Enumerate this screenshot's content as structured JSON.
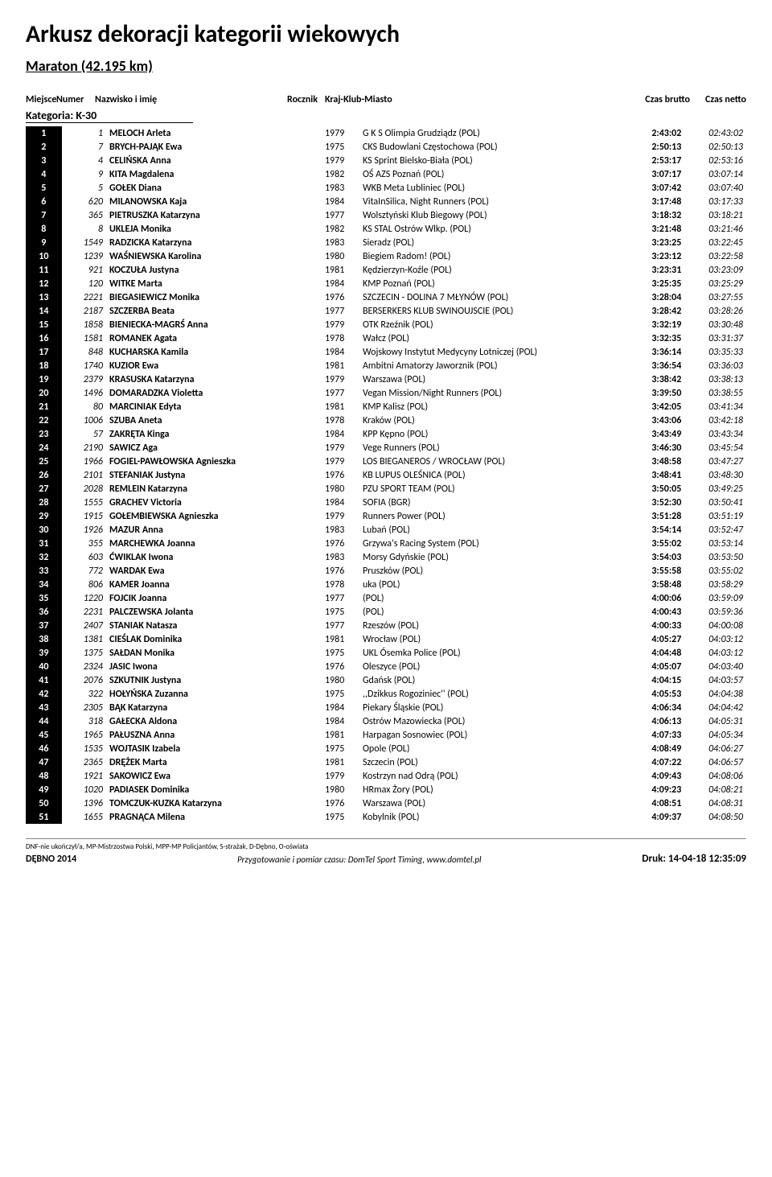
{
  "title": "Arkusz dekoracji kategorii wiekowych",
  "subtitle": "Maraton (42.195 km)",
  "headers": {
    "place": "Miejsce",
    "num": "Numer",
    "name": "Nazwisko i imię",
    "year": "Rocznik",
    "club": "Kraj-Klub-Miasto",
    "brutto": "Czas brutto",
    "netto": "Czas netto"
  },
  "category_label": "Kategoria: K-30",
  "rows": [
    {
      "p": "1",
      "n": "1",
      "name": "MELOCH Arleta",
      "y": "1979",
      "c": "G K S Olimpia  Grudziądz (POL)",
      "b": "2:43:02",
      "t": "02:43:02"
    },
    {
      "p": "2",
      "n": "7",
      "name": "BRYCH-PAJĄK Ewa",
      "y": "1975",
      "c": "CKS Budowlani Częstochowa (POL)",
      "b": "2:50:13",
      "t": "02:50:13"
    },
    {
      "p": "3",
      "n": "4",
      "name": "CELIŃSKA Anna",
      "y": "1979",
      "c": "KS Sprint Bielsko-Biała (POL)",
      "b": "2:53:17",
      "t": "02:53:16"
    },
    {
      "p": "4",
      "n": "9",
      "name": "KITA Magdalena",
      "y": "1982",
      "c": "OŚ AZS Poznań (POL)",
      "b": "3:07:17",
      "t": "03:07:14"
    },
    {
      "p": "5",
      "n": "5",
      "name": "GOŁEK Diana",
      "y": "1983",
      "c": "WKB Meta Lubliniec (POL)",
      "b": "3:07:42",
      "t": "03:07:40"
    },
    {
      "p": "6",
      "n": "620",
      "name": "MILANOWSKA Kaja",
      "y": "1984",
      "c": "VitaInSilica, Night Runners (POL)",
      "b": "3:17:48",
      "t": "03:17:33"
    },
    {
      "p": "7",
      "n": "365",
      "name": "PIETRUSZKA Katarzyna",
      "y": "1977",
      "c": "Wolsztyński Klub Biegowy (POL)",
      "b": "3:18:32",
      "t": "03:18:21"
    },
    {
      "p": "8",
      "n": "8",
      "name": "UKLEJA Monika",
      "y": "1982",
      "c": "KS STAL Ostrów Wlkp. (POL)",
      "b": "3:21:48",
      "t": "03:21:46"
    },
    {
      "p": "9",
      "n": "1549",
      "name": "RADZICKA Katarzyna",
      "y": "1983",
      "c": "Sieradz (POL)",
      "b": "3:23:25",
      "t": "03:22:45"
    },
    {
      "p": "10",
      "n": "1239",
      "name": "WAŚNIEWSKA Karolina",
      "y": "1980",
      "c": "Biegiem Radom! (POL)",
      "b": "3:23:12",
      "t": "03:22:58"
    },
    {
      "p": "11",
      "n": "921",
      "name": "KOCZUŁA Justyna",
      "y": "1981",
      "c": "Kędzierzyn-Koźle (POL)",
      "b": "3:23:31",
      "t": "03:23:09"
    },
    {
      "p": "12",
      "n": "120",
      "name": "WITKE Marta",
      "y": "1984",
      "c": "KMP Poznań (POL)",
      "b": "3:25:35",
      "t": "03:25:29"
    },
    {
      "p": "13",
      "n": "2221",
      "name": "BIEGASIEWICZ Monika",
      "y": "1976",
      "c": "SZCZECIN - DOLINA 7 MŁYNÓW (POL)",
      "b": "3:28:04",
      "t": "03:27:55"
    },
    {
      "p": "14",
      "n": "2187",
      "name": "SZCZERBA Beata",
      "y": "1977",
      "c": "BERSERKERS KLUB SWINOUJSCIE (POL)",
      "b": "3:28:42",
      "t": "03:28:26"
    },
    {
      "p": "15",
      "n": "1858",
      "name": "BIENIECKA-MAGRŚ Anna",
      "y": "1979",
      "c": "OTK Rzeźnik (POL)",
      "b": "3:32:19",
      "t": "03:30:48"
    },
    {
      "p": "16",
      "n": "1581",
      "name": "ROMANEK Agata",
      "y": "1978",
      "c": "Wałcz (POL)",
      "b": "3:32:35",
      "t": "03:31:37"
    },
    {
      "p": "17",
      "n": "848",
      "name": "KUCHARSKA Kamila",
      "y": "1984",
      "c": "Wojskowy Instytut Medycyny Lotniczej (POL)",
      "b": "3:36:14",
      "t": "03:35:33"
    },
    {
      "p": "18",
      "n": "1740",
      "name": "KUZIOR Ewa",
      "y": "1981",
      "c": "Ambitni Amatorzy Jaworznik (POL)",
      "b": "3:36:54",
      "t": "03:36:03"
    },
    {
      "p": "19",
      "n": "2379",
      "name": "KRASUSKA Katarzyna",
      "y": "1979",
      "c": "Warszawa (POL)",
      "b": "3:38:42",
      "t": "03:38:13"
    },
    {
      "p": "20",
      "n": "1496",
      "name": "DOMARADZKA Violetta",
      "y": "1977",
      "c": "Vegan Mission/Night Runners (POL)",
      "b": "3:39:50",
      "t": "03:38:55"
    },
    {
      "p": "21",
      "n": "80",
      "name": "MARCINIAK Edyta",
      "y": "1981",
      "c": "KMP Kalisz (POL)",
      "b": "3:42:05",
      "t": "03:41:34"
    },
    {
      "p": "22",
      "n": "1006",
      "name": "SZUBA Aneta",
      "y": "1978",
      "c": "Kraków (POL)",
      "b": "3:43:06",
      "t": "03:42:18"
    },
    {
      "p": "23",
      "n": "57",
      "name": "ZAKRĘTA Kinga",
      "y": "1984",
      "c": "KPP Kępno (POL)",
      "b": "3:43:49",
      "t": "03:43:34"
    },
    {
      "p": "24",
      "n": "2190",
      "name": "SAWICZ Aga",
      "y": "1979",
      "c": "Vege Runners (POL)",
      "b": "3:46:30",
      "t": "03:45:54"
    },
    {
      "p": "25",
      "n": "1966",
      "name": "FOGIEL-PAWŁOWSKA Agnieszka",
      "y": "1979",
      "c": "LOS BIEGANEROS / WROCŁAW (POL)",
      "b": "3:48:58",
      "t": "03:47:27"
    },
    {
      "p": "26",
      "n": "2101",
      "name": "STEFANIAK Justyna",
      "y": "1976",
      "c": "KB LUPUS OLEŚNICA (POL)",
      "b": "3:48:41",
      "t": "03:48:30"
    },
    {
      "p": "27",
      "n": "2028",
      "name": "REMLEIN Katarzyna",
      "y": "1980",
      "c": "PZU SPORT TEAM (POL)",
      "b": "3:50:05",
      "t": "03:49:25"
    },
    {
      "p": "28",
      "n": "1555",
      "name": "GRACHEV Victoria",
      "y": "1984",
      "c": "SOFIA (BGR)",
      "b": "3:52:30",
      "t": "03:50:41"
    },
    {
      "p": "29",
      "n": "1915",
      "name": "GOŁEMBIEWSKA Agnieszka",
      "y": "1979",
      "c": "Runners Power  (POL)",
      "b": "3:51:28",
      "t": "03:51:19"
    },
    {
      "p": "30",
      "n": "1926",
      "name": "MAZUR Anna",
      "y": "1983",
      "c": "Lubań (POL)",
      "b": "3:54:14",
      "t": "03:52:47"
    },
    {
      "p": "31",
      "n": "355",
      "name": "MARCHEWKA Joanna",
      "y": "1976",
      "c": "Grzywa's Racing System (POL)",
      "b": "3:55:02",
      "t": "03:53:14"
    },
    {
      "p": "32",
      "n": "603",
      "name": "ĆWIKLAK Iwona",
      "y": "1983",
      "c": "Morsy Gdyńskie (POL)",
      "b": "3:54:03",
      "t": "03:53:50"
    },
    {
      "p": "33",
      "n": "772",
      "name": "WARDAK Ewa",
      "y": "1976",
      "c": "Pruszków (POL)",
      "b": "3:55:58",
      "t": "03:55:02"
    },
    {
      "p": "34",
      "n": "806",
      "name": "KAMER Joanna",
      "y": "1978",
      "c": "uka (POL)",
      "b": "3:58:48",
      "t": "03:58:29"
    },
    {
      "p": "35",
      "n": "1220",
      "name": "FOJCIK Joanna",
      "y": "1977",
      "c": " (POL)",
      "b": "4:00:06",
      "t": "03:59:09"
    },
    {
      "p": "36",
      "n": "2231",
      "name": "PALCZEWSKA Jolanta",
      "y": "1975",
      "c": " (POL)",
      "b": "4:00:43",
      "t": "03:59:36"
    },
    {
      "p": "37",
      "n": "2407",
      "name": "STANIAK Natasza",
      "y": "1977",
      "c": "Rzeszów (POL)",
      "b": "4:00:33",
      "t": "04:00:08"
    },
    {
      "p": "38",
      "n": "1381",
      "name": "CIEŚLAK Dominika",
      "y": "1981",
      "c": "Wrocław (POL)",
      "b": "4:05:27",
      "t": "04:03:12"
    },
    {
      "p": "39",
      "n": "1375",
      "name": "SAŁDAN Monika",
      "y": "1975",
      "c": "UKL Ósemka Police (POL)",
      "b": "4:04:48",
      "t": "04:03:12"
    },
    {
      "p": "40",
      "n": "2324",
      "name": "JASIC Iwona",
      "y": "1976",
      "c": "Oleszyce (POL)",
      "b": "4:05:07",
      "t": "04:03:40"
    },
    {
      "p": "41",
      "n": "2076",
      "name": "SZKUTNIK Justyna",
      "y": "1980",
      "c": "Gdańsk (POL)",
      "b": "4:04:15",
      "t": "04:03:57"
    },
    {
      "p": "42",
      "n": "322",
      "name": "HOŁYŃSKA Zuzanna",
      "y": "1975",
      "c": ",,Dzikkus Rogoziniec'' (POL)",
      "b": "4:05:53",
      "t": "04:04:38"
    },
    {
      "p": "43",
      "n": "2305",
      "name": "BĄK Katarzyna",
      "y": "1984",
      "c": "Piekary Śląskie (POL)",
      "b": "4:06:34",
      "t": "04:04:42"
    },
    {
      "p": "44",
      "n": "318",
      "name": "GAŁECKA Aldona",
      "y": "1984",
      "c": "Ostrów Mazowiecka (POL)",
      "b": "4:06:13",
      "t": "04:05:31"
    },
    {
      "p": "45",
      "n": "1965",
      "name": "PAŁUSZNA Anna",
      "y": "1981",
      "c": "Harpagan Sosnowiec (POL)",
      "b": "4:07:33",
      "t": "04:05:34"
    },
    {
      "p": "46",
      "n": "1535",
      "name": "WOJTASIK Izabela",
      "y": "1975",
      "c": "Opole (POL)",
      "b": "4:08:49",
      "t": "04:06:27"
    },
    {
      "p": "47",
      "n": "2365",
      "name": "DRĘŻEK Marta",
      "y": "1981",
      "c": "Szczecin (POL)",
      "b": "4:07:22",
      "t": "04:06:57"
    },
    {
      "p": "48",
      "n": "1921",
      "name": "SAKOWICZ Ewa",
      "y": "1979",
      "c": "Kostrzyn nad Odrą (POL)",
      "b": "4:09:43",
      "t": "04:08:06"
    },
    {
      "p": "49",
      "n": "1020",
      "name": "PADIASEK Dominika",
      "y": "1980",
      "c": "HRmax Żory (POL)",
      "b": "4:09:23",
      "t": "04:08:21"
    },
    {
      "p": "50",
      "n": "1396",
      "name": "TOMCZUK-KUZKA Katarzyna",
      "y": "1976",
      "c": "Warszawa (POL)",
      "b": "4:08:51",
      "t": "04:08:31"
    },
    {
      "p": "51",
      "n": "1655",
      "name": "PRAGNĄCA Milena",
      "y": "1975",
      "c": "Kobylnik (POL)",
      "b": "4:09:37",
      "t": "04:08:50"
    }
  ],
  "footnote": "DNF-nie ukończył/a, MP-Mistrzostwa Polski, MPP-MP Policjantów, S-strażak, D-Dębno, O-oświata",
  "footer": {
    "left": "DĘBNO 2014",
    "center": "Przygotowanie i pomiar czasu: DomTel Sport Timing, www.domtel.pl",
    "right": "Druk: 14-04-18 12:35:09"
  }
}
